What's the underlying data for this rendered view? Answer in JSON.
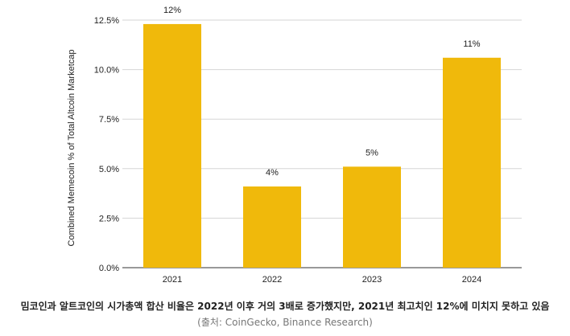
{
  "chart_data": {
    "type": "bar",
    "categories": [
      "2021",
      "2022",
      "2023",
      "2024"
    ],
    "values": [
      12.3,
      4.1,
      5.1,
      10.6
    ],
    "data_labels": [
      "12%",
      "4%",
      "5%",
      "11%"
    ],
    "ylabel": "Combined Memecoin % of Total Altcoin Marketcap",
    "xlabel": "",
    "yticks": [
      "0.0%",
      "2.5%",
      "5.0%",
      "7.5%",
      "10.0%",
      "12.5%"
    ],
    "ylim": [
      0,
      12.5
    ],
    "grid": true,
    "bar_color": "#F0B90B"
  },
  "caption": {
    "main": "밈코인과 알트코인의 시가총액 합산 비율은 2022년 이후 거의 3배로 증가했지만, 2021년 최고치인 12%에 미치지 못하고 있음",
    "source": "(출처: CoinGecko, Binance Research)"
  }
}
